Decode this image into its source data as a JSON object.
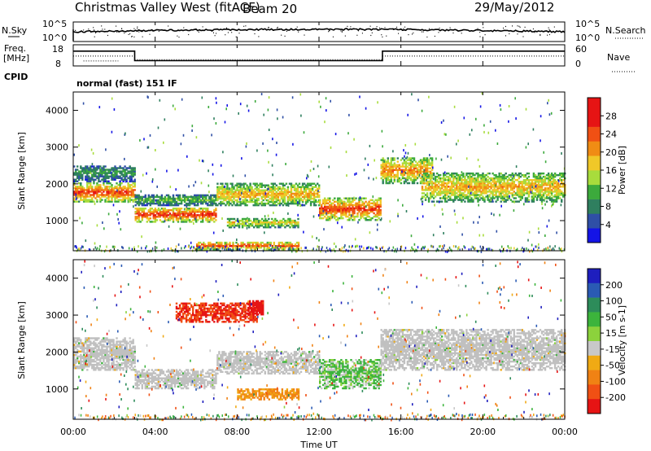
{
  "header": {
    "station": "Christmas Valley West (fitACF)",
    "beam": "Beam 20",
    "date": "29/May/2012"
  },
  "noise_panel": {
    "left_label": "N.Sky",
    "right_label": "N.Search",
    "left_ticks": [
      "10^5",
      "10^0"
    ],
    "right_ticks": [
      "10^5",
      "10^0"
    ]
  },
  "freq_panel": {
    "left_label": "Freq.",
    "left_unit": "[MHz]",
    "left_ticks": [
      "18",
      "8"
    ],
    "right_label": "Nave",
    "right_ticks": [
      "60",
      "0"
    ],
    "freq_mhz": [
      {
        "from": 0,
        "to": 3,
        "value": 15
      },
      {
        "from": 3,
        "to": 15.1,
        "value": 10.5
      },
      {
        "from": 15.1,
        "to": 24,
        "value": 15
      }
    ],
    "nave_approx": [
      {
        "from": 0,
        "to": 3,
        "value": 28
      },
      {
        "from": 3,
        "to": 15.1,
        "value": 18
      },
      {
        "from": 15.1,
        "to": 24,
        "value": 28
      }
    ]
  },
  "cpid": {
    "label": "CPID",
    "text": "normal (fast) 151 IF"
  },
  "axes": {
    "xlabel": "Time UT",
    "xticks": [
      "00:00",
      "04:00",
      "08:00",
      "12:00",
      "16:00",
      "20:00",
      "00:00"
    ],
    "ylabel": "Slant Range [km]",
    "yticks": [
      "1000",
      "2000",
      "3000",
      "4000"
    ]
  },
  "power_colorbar": {
    "label": "Power [dB]",
    "ticks": [
      "4",
      "8",
      "12",
      "16",
      "20",
      "24",
      "28"
    ],
    "colors": [
      "#1414e6",
      "#2f4fa6",
      "#2f7f5f",
      "#3caa3c",
      "#a8dc3c",
      "#f0c828",
      "#f08c14",
      "#f05014",
      "#e61414",
      "#e61414"
    ]
  },
  "velocity_colorbar": {
    "label": "Velocity [m s-1]",
    "ticks": [
      "200",
      "100",
      "50",
      "15",
      "-15",
      "-50",
      "-100",
      "-200"
    ],
    "colors": [
      "#1e1ebe",
      "#2a5ab4",
      "#2d8c5a",
      "#3cb43c",
      "#8cd23c",
      "#c8c8c8",
      "#f0aa14",
      "#f08214",
      "#f05014",
      "#e61414"
    ],
    "ground_scatter_color": "#c0c0c0"
  },
  "chart_data": [
    {
      "type": "heatmap",
      "name_printed": "Power [dB]",
      "x_unit": "hours UT",
      "xlim": [
        0,
        24
      ],
      "ylim": [
        180,
        4500
      ],
      "features": [
        {
          "t": [
            0,
            3
          ],
          "r": [
            1500,
            2000
          ],
          "value_db": 26
        },
        {
          "t": [
            0,
            3
          ],
          "r": [
            2050,
            2500
          ],
          "value_db": 10
        },
        {
          "t": [
            3,
            7
          ],
          "r": [
            950,
            1350
          ],
          "value_db": 27
        },
        {
          "t": [
            3,
            7
          ],
          "r": [
            1400,
            1700
          ],
          "value_db": 12
        },
        {
          "t": [
            7,
            12
          ],
          "r": [
            1400,
            2000
          ],
          "value_db": 20
        },
        {
          "t": [
            7.5,
            11
          ],
          "r": [
            800,
            1050
          ],
          "value_db": 18
        },
        {
          "t": [
            12,
            15
          ],
          "r": [
            1000,
            1600
          ],
          "value_db": 26
        },
        {
          "t": [
            15,
            17.5
          ],
          "r": [
            2000,
            2700
          ],
          "value_db": 22
        },
        {
          "t": [
            17,
            24
          ],
          "r": [
            1500,
            2300
          ],
          "value_db": 20
        },
        {
          "t": [
            6,
            11
          ],
          "r": [
            200,
            400
          ],
          "value_db": 26
        }
      ]
    },
    {
      "type": "heatmap",
      "name_printed": "Velocity [m s-1]",
      "x_unit": "hours UT",
      "xlim": [
        0,
        24
      ],
      "ylim": [
        180,
        4500
      ],
      "features": [
        {
          "t": [
            0,
            3
          ],
          "r": [
            1500,
            2400
          ],
          "value": 0,
          "ground_scatter": true
        },
        {
          "t": [
            3,
            7
          ],
          "r": [
            1000,
            1500
          ],
          "value": 0,
          "ground_scatter": true
        },
        {
          "t": [
            7,
            12
          ],
          "r": [
            1400,
            2000
          ],
          "value": 0,
          "ground_scatter": true
        },
        {
          "t": [
            8,
            11
          ],
          "r": [
            700,
            1000
          ],
          "value": -60
        },
        {
          "t": [
            12,
            15
          ],
          "r": [
            1000,
            1800
          ],
          "value": 20
        },
        {
          "t": [
            15,
            24
          ],
          "r": [
            1500,
            2600
          ],
          "value": 0,
          "ground_scatter": true
        },
        {
          "t": [
            5,
            9
          ],
          "r": [
            2800,
            3300
          ],
          "value": -150
        },
        {
          "t": [
            8.5,
            9.3
          ],
          "r": [
            3000,
            3400
          ],
          "value": -200
        }
      ]
    }
  ]
}
